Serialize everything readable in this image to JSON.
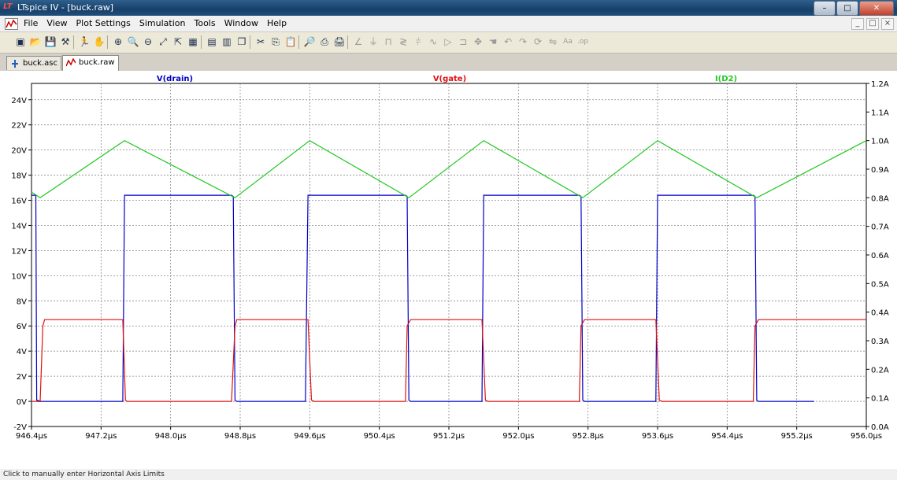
{
  "window": {
    "title": "LTspice IV - [buck.raw]",
    "logo_text": "LT"
  },
  "menu": [
    "File",
    "View",
    "Plot Settings",
    "Simulation",
    "Tools",
    "Window",
    "Help"
  ],
  "tabs": [
    {
      "label": "buck.asc",
      "active": false
    },
    {
      "label": "buck.raw",
      "active": true
    }
  ],
  "status_text": "Click to manually enter Horizontal Axis Limits",
  "toolbar_icons": [
    "new-schematic-icon",
    "open-icon",
    "save-icon",
    "control-panel-icon",
    "run-icon",
    "halt-icon",
    "zoom-in-icon",
    "zoom-box-icon",
    "zoom-out-icon",
    "zoom-fit-icon",
    "autorange-icon",
    "grid-icon",
    "tile-vertical-icon",
    "tile-horizontal-icon",
    "cascade-icon",
    "cut-icon",
    "copy-icon",
    "paste-icon",
    "find-icon",
    "print-icon",
    "print-preview-icon",
    "wire-icon",
    "ground-icon",
    "label-icon",
    "resistor-icon",
    "capacitor-icon",
    "inductor-icon",
    "diode-icon",
    "component-icon",
    "move-icon",
    "drag-icon",
    "undo-icon",
    "redo-icon",
    "rotate-icon",
    "mirror-icon",
    "text-icon",
    "spice-directive-icon"
  ],
  "colors": {
    "vdrain": "#0000c8",
    "vgate": "#e01010",
    "id2": "#20c820"
  },
  "chart_data": {
    "type": "line",
    "series": [
      {
        "name": "V(drain)",
        "color": "#0000c8",
        "axis": "left",
        "x": [
          946.4,
          946.45,
          946.46,
          946.51,
          946.47,
          946.5,
          946.52,
          946.54,
          946.6,
          946.7,
          946.8,
          947.0,
          947.2,
          947.45,
          947.47,
          947.5,
          947.6,
          947.7,
          947.8,
          947.9,
          948.0,
          948.2,
          948.4,
          948.6,
          948.7,
          948.72,
          948.74,
          948.76,
          948.8,
          949.0,
          949.2,
          949.4,
          949.5,
          949.55,
          949.58,
          949.6,
          949.62,
          949.64,
          949.7,
          949.8,
          950.0,
          950.2,
          950.4,
          950.6,
          950.7,
          950.72,
          950.74,
          950.76,
          950.8,
          951.0,
          951.2,
          951.4,
          951.5,
          951.58,
          951.6,
          951.62,
          951.64,
          951.7,
          951.8,
          952.0,
          952.2,
          952.4,
          952.6,
          952.7,
          952.72,
          952.74,
          952.76,
          952.8,
          953.0,
          953.2,
          953.4,
          953.5,
          953.58,
          953.6,
          953.62,
          953.64,
          953.7,
          953.8,
          954.0,
          954.2,
          954.4,
          954.6,
          954.7,
          954.72,
          954.74,
          954.76,
          954.8,
          955.0,
          955.2,
          955.4
        ],
        "y": [
          16.4,
          16.4,
          0.1,
          0.0,
          0.0,
          0.0,
          0.0,
          0.0,
          0.0,
          0.0,
          0.0,
          0.0,
          0.0,
          0.0,
          16.4,
          16.4,
          16.4,
          16.4,
          16.4,
          16.4,
          16.4,
          16.4,
          16.4,
          16.4,
          16.4,
          16.3,
          0.1,
          0.0,
          0.0,
          0.0,
          0.0,
          0.0,
          0.0,
          0.0,
          16.4,
          16.4,
          16.4,
          16.4,
          16.4,
          16.4,
          16.4,
          16.4,
          16.4,
          16.4,
          16.4,
          16.3,
          0.1,
          0.0,
          0.0,
          0.0,
          0.0,
          0.0,
          0.0,
          0.0,
          16.4,
          16.4,
          16.4,
          16.4,
          16.4,
          16.4,
          16.4,
          16.4,
          16.4,
          16.4,
          16.3,
          0.1,
          0.0,
          0.0,
          0.0,
          0.0,
          0.0,
          0.0,
          0.0,
          16.4,
          16.4,
          16.4,
          16.4,
          16.4,
          16.4,
          16.4,
          16.4,
          16.4,
          16.4,
          16.3,
          0.1,
          0.0,
          0.0,
          0.0,
          0.0,
          0.0
        ]
      },
      {
        "name": "V(gate)",
        "color": "#e01010",
        "axis": "left",
        "x": [
          946.4,
          946.5,
          946.53,
          946.55,
          946.6,
          947.0,
          947.4,
          947.45,
          947.48,
          947.5,
          948.0,
          948.5,
          948.7,
          948.74,
          948.76,
          948.8,
          949.2,
          949.58,
          949.62,
          949.65,
          949.7,
          950.2,
          950.7,
          950.72,
          950.76,
          950.8,
          951.2,
          951.58,
          951.62,
          951.65,
          951.7,
          952.2,
          952.7,
          952.72,
          952.76,
          952.8,
          953.2,
          953.58,
          953.62,
          953.65,
          953.7,
          954.2,
          954.7,
          954.72,
          954.76,
          954.8,
          955.2,
          955.6,
          956.0
        ],
        "y": [
          0.0,
          0.0,
          6.0,
          6.5,
          6.5,
          6.5,
          6.5,
          6.5,
          0.1,
          0.0,
          0.0,
          0.0,
          0.0,
          6.0,
          6.5,
          6.5,
          6.5,
          6.5,
          0.1,
          0.0,
          0.0,
          0.0,
          0.0,
          6.0,
          6.5,
          6.5,
          6.5,
          6.5,
          0.1,
          0.0,
          0.0,
          0.0,
          0.0,
          6.0,
          6.5,
          6.5,
          6.5,
          6.5,
          0.1,
          0.0,
          0.0,
          0.0,
          0.0,
          6.0,
          6.5,
          6.5,
          6.5,
          6.5,
          6.5
        ]
      },
      {
        "name": "I(D2)",
        "color": "#20c820",
        "axis": "right",
        "x": [
          946.4,
          946.5,
          947.47,
          948.74,
          949.6,
          950.74,
          951.6,
          952.74,
          953.6,
          954.74,
          956.0
        ],
        "y": [
          0.82,
          0.8,
          1.0,
          0.8,
          1.0,
          0.8,
          1.0,
          0.8,
          1.0,
          0.8,
          1.0
        ]
      }
    ],
    "x_ticks": [
      "946.4µs",
      "947.2µs",
      "948.0µs",
      "948.8µs",
      "949.6µs",
      "950.4µs",
      "951.2µs",
      "952.0µs",
      "952.8µs",
      "953.6µs",
      "954.4µs",
      "955.2µs",
      "956.0µs"
    ],
    "y_left_ticks": [
      "24V",
      "22V",
      "20V",
      "18V",
      "16V",
      "14V",
      "12V",
      "10V",
      "8V",
      "6V",
      "4V",
      "2V",
      "0V",
      "-2V"
    ],
    "y_right_ticks": [
      "1.2A",
      "1.1A",
      "1.0A",
      "0.9A",
      "0.8A",
      "0.7A",
      "0.6A",
      "0.5A",
      "0.4A",
      "0.3A",
      "0.2A",
      "0.1A",
      "0.0A"
    ],
    "xlim": [
      946.4,
      956.0
    ],
    "ylim_left": [
      -2,
      25.3
    ],
    "ylim_right": [
      0.0,
      1.2
    ],
    "grid": true
  }
}
